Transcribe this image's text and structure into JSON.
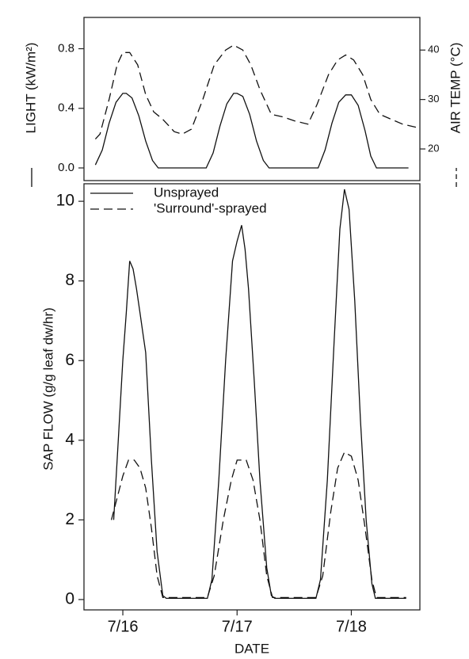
{
  "chart_data": [
    {
      "type": "line",
      "y_label": "LIGHT (kW/m²)",
      "y2_label": "AIR TEMP (°C)",
      "xlim": [
        15.66,
        18.6
      ],
      "ylim": [
        -0.085,
        1.01
      ],
      "yticks": [
        {
          "value": 0,
          "label": "0.0"
        },
        0.4,
        0.8
      ],
      "y2lim": [
        13.6,
        46.6
      ],
      "y2ticks": [
        20,
        30,
        40
      ],
      "series": [
        {
          "color": "#111111",
          "dash": false,
          "x": [
            15.76,
            15.82,
            15.88,
            15.94,
            16.0,
            16.03,
            16.08,
            16.14,
            16.2,
            16.26,
            16.31,
            16.73,
            16.79,
            16.85,
            16.91,
            16.97,
            17.0,
            17.05,
            17.11,
            17.17,
            17.23,
            17.28,
            17.71,
            17.77,
            17.83,
            17.89,
            17.95,
            18.0,
            18.06,
            18.12,
            18.17,
            18.22,
            18.5
          ],
          "values": [
            0.02,
            0.12,
            0.3,
            0.44,
            0.5,
            0.5,
            0.47,
            0.35,
            0.18,
            0.05,
            0,
            0,
            0.1,
            0.28,
            0.43,
            0.5,
            0.5,
            0.48,
            0.36,
            0.18,
            0.05,
            0,
            0,
            0.12,
            0.3,
            0.44,
            0.49,
            0.49,
            0.42,
            0.25,
            0.08,
            0,
            0
          ]
        },
        {
          "color": "#111111",
          "dash": true,
          "axis": "y2",
          "x": [
            15.76,
            15.8,
            15.88,
            15.95,
            16.0,
            16.06,
            16.13,
            16.2,
            16.27,
            16.35,
            16.45,
            16.52,
            16.6,
            16.7,
            16.8,
            16.9,
            16.97,
            17.05,
            17.12,
            17.2,
            17.3,
            17.4,
            17.5,
            17.62,
            17.7,
            17.8,
            17.88,
            17.95,
            18.02,
            18.1,
            18.17,
            18.25,
            18.35,
            18.45,
            18.6
          ],
          "values": [
            22,
            23,
            30,
            37,
            39.5,
            39.5,
            37,
            31,
            27.5,
            26,
            23.5,
            23,
            24,
            30,
            37,
            40,
            41,
            40,
            37,
            32,
            27,
            26.5,
            25.7,
            25,
            29,
            35,
            38,
            39,
            38,
            35,
            30,
            27,
            26,
            25,
            24.2
          ]
        }
      ]
    },
    {
      "type": "line",
      "x_label": "DATE",
      "y_label": "SAP FLOW  (g/g leaf dw/hr)",
      "xlim": [
        15.66,
        18.6
      ],
      "xticks": [
        {
          "value": 16,
          "label": "7/16"
        },
        {
          "value": 17,
          "label": "7/17"
        },
        {
          "value": 18,
          "label": "7/18"
        }
      ],
      "ylim": [
        -0.26,
        10.44
      ],
      "yticks": [
        0,
        2,
        4,
        6,
        8,
        10
      ],
      "legend": "upper left",
      "series": [
        {
          "name": "Unsprayed",
          "color": "#111111",
          "dash": false,
          "x": [
            15.92,
            15.96,
            16.0,
            16.03,
            16.06,
            16.09,
            16.12,
            16.15,
            16.18,
            16.2,
            16.25,
            16.3,
            16.35,
            16.38,
            16.74,
            16.78,
            16.84,
            16.9,
            16.96,
            17.0,
            17.04,
            17.07,
            17.1,
            17.15,
            17.2,
            17.26,
            17.3,
            17.33,
            17.69,
            17.73,
            17.79,
            17.85,
            17.9,
            17.94,
            17.98,
            18.03,
            18.08,
            18.13,
            18.18,
            18.21,
            18.48
          ],
          "values": [
            2,
            4,
            6,
            7.2,
            8.5,
            8.3,
            7.8,
            7.2,
            6.6,
            6.2,
            3.5,
            1.2,
            0.1,
            0.03,
            0.03,
            0.5,
            3,
            6,
            8.5,
            9,
            9.4,
            8.8,
            7.8,
            5.5,
            3,
            0.8,
            0.1,
            0.03,
            0.03,
            0.5,
            3,
            6.5,
            9.3,
            10.3,
            9.8,
            7.5,
            4.5,
            2,
            0.4,
            0.03,
            0.03
          ]
        },
        {
          "name": "'Surround'-sprayed",
          "color": "#111111",
          "dash": true,
          "x": [
            15.9,
            16.0,
            16.05,
            16.1,
            16.15,
            16.2,
            16.25,
            16.3,
            16.35,
            16.74,
            16.8,
            16.88,
            16.95,
            17.0,
            17.08,
            17.14,
            17.2,
            17.26,
            17.31,
            17.69,
            17.75,
            17.82,
            17.88,
            17.94,
            18.0,
            18.06,
            18.12,
            18.18,
            18.22,
            18.48
          ],
          "values": [
            2,
            3.1,
            3.5,
            3.5,
            3.3,
            2.8,
            1.8,
            0.6,
            0.05,
            0.05,
            0.6,
            2,
            3,
            3.5,
            3.5,
            3,
            2,
            0.6,
            0.05,
            0.05,
            0.6,
            2.2,
            3.3,
            3.7,
            3.6,
            3,
            1.8,
            0.5,
            0.05,
            0.05
          ]
        }
      ]
    }
  ]
}
